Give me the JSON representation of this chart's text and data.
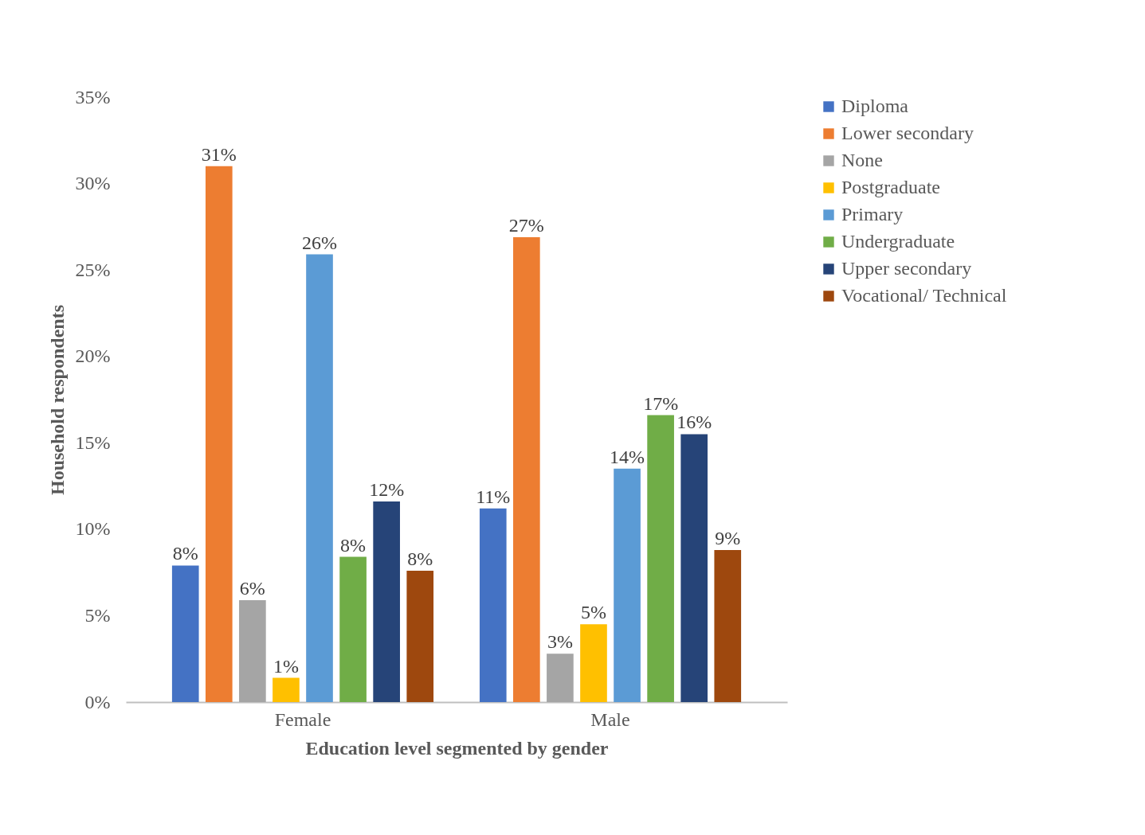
{
  "chart_data": {
    "type": "bar",
    "xlabel": "Education level segmented by gender",
    "ylabel": "Household respondents",
    "categories": [
      "Female",
      "Male"
    ],
    "series": [
      {
        "name": "Diploma",
        "color": "#4472c4",
        "values": [
          7.9,
          11.2
        ],
        "value_labels": [
          "8%",
          "11%"
        ]
      },
      {
        "name": "Lower secondary",
        "color": "#ed7d31",
        "values": [
          31.0,
          26.9
        ],
        "value_labels": [
          "31%",
          "27%"
        ]
      },
      {
        "name": "None",
        "color": "#a5a5a5",
        "values": [
          5.9,
          2.8
        ],
        "value_labels": [
          "6%",
          "3%"
        ]
      },
      {
        "name": "Postgraduate",
        "color": "#ffc000",
        "values": [
          1.4,
          4.5
        ],
        "value_labels": [
          "1%",
          "5%"
        ]
      },
      {
        "name": "Primary",
        "color": "#5b9bd5",
        "values": [
          25.9,
          13.5
        ],
        "value_labels": [
          "26%",
          "14%"
        ]
      },
      {
        "name": "Undergraduate",
        "color": "#70ad47",
        "values": [
          8.4,
          16.6
        ],
        "value_labels": [
          "8%",
          "17%"
        ]
      },
      {
        "name": "Upper secondary",
        "color": "#264478",
        "values": [
          11.6,
          15.5
        ],
        "value_labels": [
          "12%",
          "16%"
        ]
      },
      {
        "name": "Vocational/ Technical",
        "color": "#9e480e",
        "values": [
          7.6,
          8.8
        ],
        "value_labels": [
          "8%",
          "9%"
        ]
      }
    ],
    "ylim": [
      0,
      35
    ],
    "yticks": [
      {
        "value": 0,
        "label": "0%"
      },
      {
        "value": 5,
        "label": "5%"
      },
      {
        "value": 10,
        "label": "10%"
      },
      {
        "value": 15,
        "label": "15%"
      },
      {
        "value": 20,
        "label": "20%"
      },
      {
        "value": 25,
        "label": "25%"
      },
      {
        "value": 30,
        "label": "30%"
      },
      {
        "value": 35,
        "label": "35%"
      }
    ],
    "grid": false,
    "legend": "right"
  }
}
